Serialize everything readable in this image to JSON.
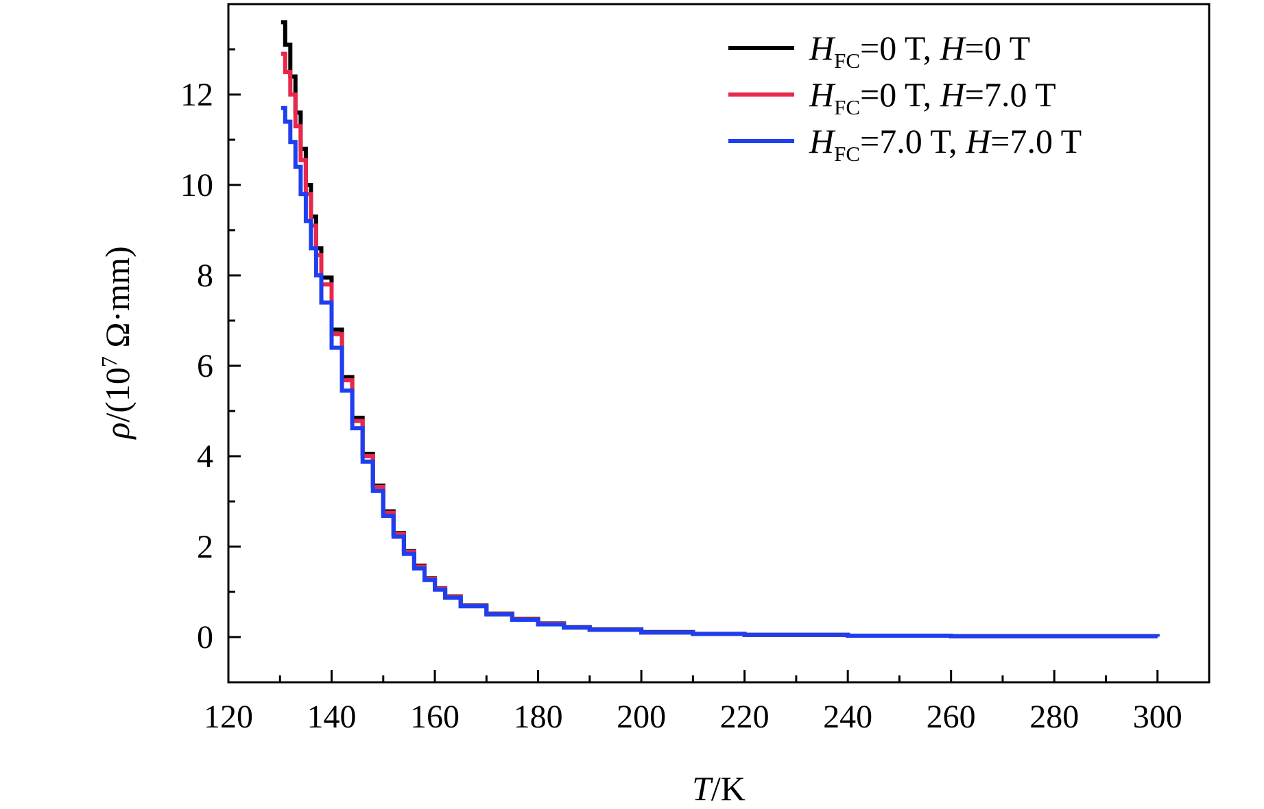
{
  "chart_data": {
    "type": "line",
    "title": "",
    "xlabel": {
      "var": "T",
      "unit": "/K"
    },
    "ylabel": {
      "var": "ρ",
      "unit_prefix": "/(10",
      "unit_exp": "7",
      "unit_suffix": " Ω·mm)"
    },
    "xlim": [
      120,
      310
    ],
    "ylim": [
      -1,
      14
    ],
    "xticks": [
      120,
      140,
      160,
      180,
      200,
      220,
      240,
      260,
      280,
      300
    ],
    "xtick_labels": [
      "120",
      "140",
      "160",
      "180",
      "200",
      "220",
      "240",
      "260",
      "280",
      "300"
    ],
    "yticks": [
      0,
      2,
      4,
      6,
      8,
      10,
      12
    ],
    "ytick_labels": [
      "0",
      "2",
      "4",
      "6",
      "8",
      "10",
      "12"
    ],
    "grid": false,
    "legend_position": "top-right",
    "series": [
      {
        "name": "H_FC=0 T, H=0 T",
        "legend": {
          "a": "H",
          "sub": "FC",
          "b": "=0 T, ",
          "c": "H",
          "d": "=0 T"
        },
        "color": "#000000",
        "x": [
          130.2,
          131,
          132,
          133,
          134,
          135,
          136,
          137,
          138,
          140,
          142,
          144,
          146,
          148,
          150,
          152,
          154,
          156,
          158,
          160,
          162,
          165,
          170,
          175,
          180,
          185,
          190,
          200,
          210,
          220,
          240,
          260,
          280,
          300
        ],
        "y": [
          13.6,
          13.1,
          12.4,
          11.6,
          10.8,
          10.0,
          9.3,
          8.6,
          7.95,
          6.8,
          5.75,
          4.85,
          4.05,
          3.35,
          2.78,
          2.3,
          1.9,
          1.58,
          1.3,
          1.08,
          0.9,
          0.7,
          0.52,
          0.4,
          0.3,
          0.22,
          0.17,
          0.11,
          0.07,
          0.05,
          0.03,
          0.02,
          0.02,
          0.01
        ]
      },
      {
        "name": "H_FC=0 T, H=7.0 T",
        "legend": {
          "a": "H",
          "sub": "FC",
          "b": "=0 T, ",
          "c": "H",
          "d": "=7.0 T"
        },
        "color": "#e8284a",
        "x": [
          130.2,
          131,
          132,
          133,
          134,
          135,
          136,
          137,
          138,
          140,
          142,
          144,
          146,
          148,
          150,
          152,
          154,
          156,
          158,
          160,
          162,
          165,
          170,
          175,
          180,
          185,
          190,
          200,
          210,
          220,
          240,
          260,
          280,
          300
        ],
        "y": [
          12.9,
          12.5,
          12.0,
          11.3,
          10.55,
          9.8,
          9.1,
          8.45,
          7.8,
          6.7,
          5.68,
          4.78,
          4.0,
          3.32,
          2.75,
          2.28,
          1.88,
          1.56,
          1.29,
          1.07,
          0.89,
          0.69,
          0.51,
          0.39,
          0.29,
          0.21,
          0.16,
          0.1,
          0.07,
          0.05,
          0.03,
          0.02,
          0.02,
          0.01
        ]
      },
      {
        "name": "H_FC=7.0 T, H=7.0 T",
        "legend": {
          "a": "H",
          "sub": "FC",
          "b": "=7.0 T, ",
          "c": "H",
          "d": "=7.0 T"
        },
        "color": "#1e3ff0",
        "x": [
          130.2,
          131,
          132,
          133,
          134,
          135,
          136,
          137,
          138,
          140,
          142,
          144,
          146,
          148,
          150,
          152,
          154,
          156,
          158,
          160,
          162,
          165,
          170,
          175,
          180,
          185,
          190,
          200,
          210,
          220,
          240,
          260,
          280,
          300
        ],
        "y": [
          11.7,
          11.4,
          10.95,
          10.4,
          9.8,
          9.2,
          8.6,
          8.0,
          7.4,
          6.4,
          5.45,
          4.62,
          3.88,
          3.23,
          2.68,
          2.22,
          1.84,
          1.52,
          1.26,
          1.05,
          0.87,
          0.68,
          0.5,
          0.38,
          0.28,
          0.21,
          0.16,
          0.1,
          0.07,
          0.05,
          0.03,
          0.02,
          0.02,
          0.01
        ]
      }
    ]
  }
}
